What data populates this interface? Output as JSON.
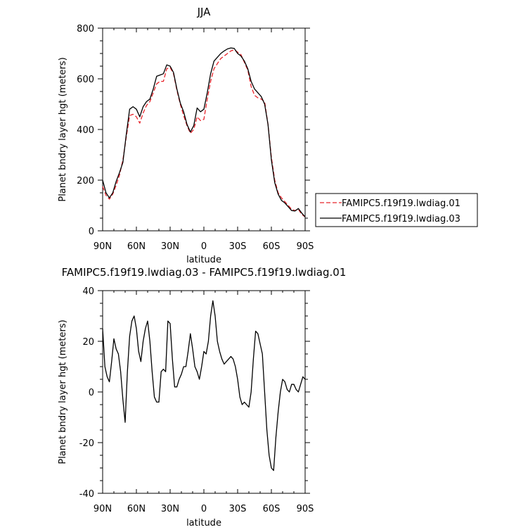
{
  "chart_data": [
    {
      "type": "line",
      "title": "JJA",
      "xlabel": "latitude",
      "ylabel": "Planet bndry layer hgt (meters)",
      "xlim": [
        90,
        -90
      ],
      "ylim": [
        0,
        800
      ],
      "x_ticks": [
        90,
        60,
        30,
        0,
        -30,
        -60,
        -90
      ],
      "x_tick_labels": [
        "90N",
        "60N",
        "30N",
        "0",
        "30S",
        "60S",
        "90S"
      ],
      "y_ticks": [
        0,
        200,
        400,
        600,
        800
      ],
      "y_tick_labels": [
        "0",
        "200",
        "400",
        "600",
        "800"
      ],
      "grid": false,
      "legend_position": "right-outside",
      "series": [
        {
          "name": "FAMIPC5.f19f19.lwdiag.01",
          "color": "#e8242b",
          "dash": "dashed",
          "x": [
            90,
            87,
            84,
            81,
            78,
            75,
            72,
            69,
            66,
            63,
            60,
            57,
            54,
            51,
            48,
            45,
            42,
            39,
            36,
            33,
            30,
            27,
            24,
            21,
            18,
            15,
            12,
            9,
            6,
            3,
            0,
            -3,
            -6,
            -9,
            -12,
            -15,
            -18,
            -21,
            -24,
            -27,
            -30,
            -33,
            -36,
            -39,
            -42,
            -45,
            -48,
            -51,
            -54,
            -57,
            -60,
            -63,
            -66,
            -69,
            -72,
            -75,
            -78,
            -81,
            -84,
            -87,
            -90
          ],
          "values": [
            175,
            140,
            125,
            145,
            180,
            220,
            280,
            370,
            455,
            460,
            450,
            425,
            465,
            495,
            510,
            545,
            580,
            590,
            590,
            640,
            645,
            620,
            555,
            500,
            455,
            415,
            385,
            400,
            450,
            435,
            440,
            520,
            590,
            640,
            660,
            680,
            690,
            700,
            710,
            715,
            705,
            695,
            665,
            635,
            570,
            535,
            525,
            520,
            510,
            420,
            290,
            200,
            150,
            130,
            115,
            100,
            85,
            80,
            85,
            65,
            55
          ]
        },
        {
          "name": "FAMIPC5.f19f19.lwdiag.03",
          "color": "#000000",
          "dash": "solid",
          "x": [
            90,
            87,
            84,
            81,
            78,
            75,
            72,
            69,
            66,
            63,
            60,
            57,
            54,
            51,
            48,
            45,
            42,
            39,
            36,
            33,
            30,
            27,
            24,
            21,
            18,
            15,
            12,
            9,
            6,
            3,
            0,
            -3,
            -6,
            -9,
            -12,
            -15,
            -18,
            -21,
            -24,
            -27,
            -30,
            -33,
            -36,
            -39,
            -42,
            -45,
            -48,
            -51,
            -54,
            -57,
            -60,
            -63,
            -66,
            -69,
            -72,
            -75,
            -78,
            -81,
            -84,
            -87,
            -90
          ],
          "values": [
            200,
            150,
            130,
            150,
            195,
            230,
            270,
            380,
            480,
            490,
            480,
            450,
            490,
            510,
            520,
            560,
            610,
            615,
            620,
            655,
            650,
            625,
            560,
            505,
            470,
            420,
            390,
            415,
            485,
            470,
            480,
            545,
            620,
            670,
            685,
            700,
            710,
            718,
            722,
            720,
            700,
            690,
            670,
            640,
            590,
            560,
            545,
            530,
            500,
            420,
            280,
            190,
            145,
            120,
            110,
            95,
            80,
            78,
            88,
            70,
            55
          ]
        }
      ]
    },
    {
      "type": "line",
      "title": "FAMIPC5.f19f19.lwdiag.03 - FAMIPC5.f19f19.lwdiag.01",
      "xlabel": "latitude",
      "ylabel": "Planet bndry layer hgt (meters)",
      "xlim": [
        90,
        -90
      ],
      "ylim": [
        -40,
        40
      ],
      "x_ticks": [
        90,
        60,
        30,
        0,
        -30,
        -60,
        -90
      ],
      "x_tick_labels": [
        "90N",
        "60N",
        "30N",
        "0",
        "30S",
        "60S",
        "90S"
      ],
      "y_ticks": [
        -40,
        -20,
        0,
        20,
        40
      ],
      "y_tick_labels": [
        "-40",
        "-20",
        "0",
        "20",
        "40"
      ],
      "grid": false,
      "series": [
        {
          "color": "#000000",
          "dash": "solid",
          "x": [
            90,
            88,
            86,
            84,
            82,
            80,
            78,
            76,
            74,
            72,
            70,
            68,
            66,
            64,
            62,
            60,
            58,
            56,
            54,
            52,
            50,
            48,
            46,
            44,
            42,
            40,
            38,
            36,
            34,
            32,
            30,
            28,
            26,
            24,
            22,
            20,
            18,
            16,
            14,
            12,
            10,
            8,
            6,
            4,
            2,
            0,
            -2,
            -4,
            -6,
            -8,
            -10,
            -12,
            -14,
            -16,
            -18,
            -20,
            -22,
            -24,
            -26,
            -28,
            -30,
            -32,
            -34,
            -36,
            -38,
            -40,
            -42,
            -44,
            -46,
            -48,
            -50,
            -52,
            -54,
            -56,
            -58,
            -60,
            -62,
            -64,
            -66,
            -68,
            -70,
            -72,
            -74,
            -76,
            -78,
            -80,
            -82,
            -84,
            -86,
            -88,
            -90
          ],
          "values": [
            25,
            10,
            6,
            4,
            12,
            21,
            17,
            15,
            8,
            -3,
            -12,
            8,
            22,
            28,
            30,
            25,
            16,
            12,
            20,
            25,
            28,
            20,
            8,
            -2,
            -4,
            -4,
            8,
            9,
            8,
            28,
            27,
            13,
            2,
            2,
            5,
            7,
            10,
            10,
            16,
            23,
            17,
            10,
            8,
            5,
            10,
            16,
            15,
            20,
            30,
            36,
            30,
            20,
            16,
            13,
            11,
            12,
            13,
            14,
            13,
            10,
            5,
            -2,
            -5,
            -4,
            -5,
            -6,
            0,
            13,
            24,
            23,
            19,
            15,
            0,
            -15,
            -25,
            -30,
            -31,
            -18,
            -8,
            0,
            5,
            4,
            1,
            0,
            3,
            3,
            1,
            0,
            3,
            6,
            5
          ]
        }
      ]
    }
  ]
}
